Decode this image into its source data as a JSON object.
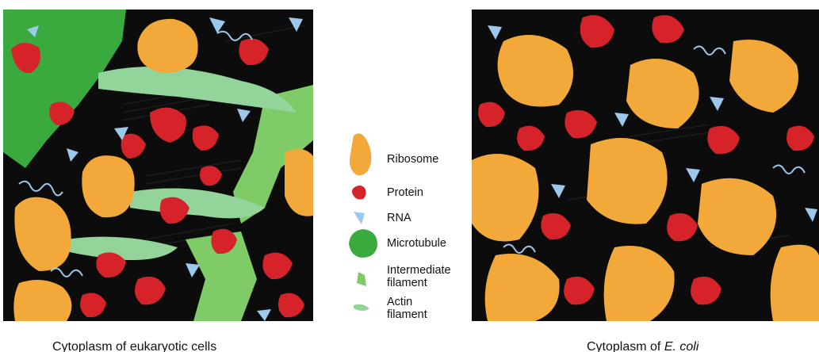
{
  "legend": {
    "ribosome": "Ribosome",
    "protein": "Protein",
    "rna": "RNA",
    "microtubule": "Microtubule",
    "intermediate_filament_line1": "Intermediate",
    "intermediate_filament_line2": "filament",
    "actin_filament_line1": "Actin",
    "actin_filament_line2": "filament"
  },
  "captions": {
    "left": "Cytoplasm of eukaryotic cells",
    "right_prefix": "Cytoplasm of ",
    "right_species": "E. coli"
  },
  "colors": {
    "ribosome": "#f3a93a",
    "protein": "#d6232a",
    "rna": "#9cc8ec",
    "microtubule": "#3aaa3f",
    "intermediate_filament": "#7ecb68",
    "actin_filament": "#93d49a",
    "background": "#0c0c0c"
  }
}
